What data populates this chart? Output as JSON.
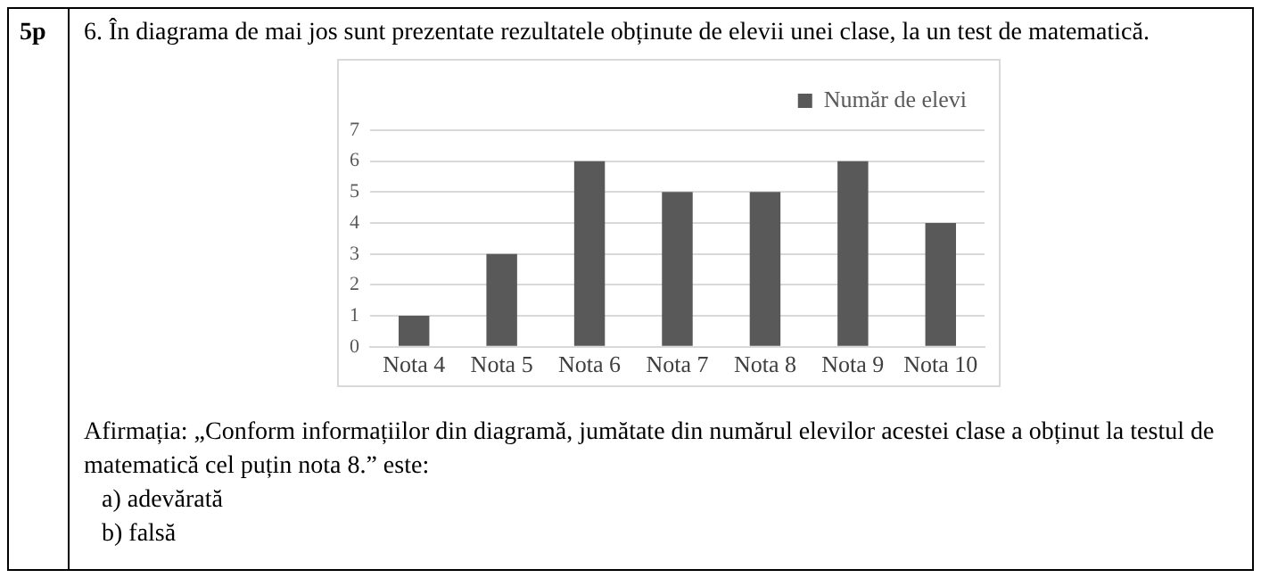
{
  "chart_data": {
    "type": "bar",
    "title": "6. În diagrama de mai jos sunt prezentate rezultatele obținute de elevii unei clase, la un test de matematică.",
    "categories": [
      "Nota 4",
      "Nota 5",
      "Nota 6",
      "Nota 7",
      "Nota 8",
      "Nota 9",
      "Nota 10"
    ],
    "series": [
      {
        "name": "Număr de elevi",
        "color": "#595959",
        "values": [
          1,
          3,
          6,
          5,
          5,
          6,
          4
        ]
      }
    ],
    "ylim": [
      0,
      7
    ],
    "yticks": [
      0,
      1,
      2,
      3,
      4,
      5,
      6,
      7
    ],
    "grid": "y",
    "legend": "top right",
    "annotations": [
      "5p",
      "Afirmația: „Conform informațiilor din diagramă, jumătate din numărul elevilor acestei clase a obținut la testul de matematică cel puțin nota 8.” este:",
      "a) adevărată",
      "b) falsă"
    ]
  }
}
